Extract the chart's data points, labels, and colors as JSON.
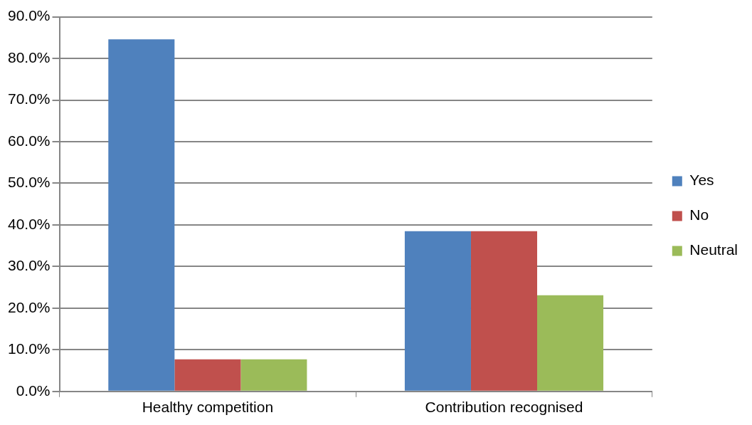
{
  "chart_data": {
    "type": "bar",
    "categories": [
      "Healthy competition",
      "Contribution recognised"
    ],
    "series": [
      {
        "name": "Yes",
        "color": "#4f81bd",
        "values": [
          84.6,
          38.5
        ]
      },
      {
        "name": "No",
        "color": "#c0504d",
        "values": [
          7.7,
          38.5
        ]
      },
      {
        "name": "Neutral",
        "color": "#9bbb59",
        "values": [
          7.7,
          23.1
        ]
      }
    ],
    "ylim": [
      0,
      90
    ],
    "yticks": [
      {
        "value": 0,
        "label": "0.0%"
      },
      {
        "value": 10,
        "label": "10.0%"
      },
      {
        "value": 20,
        "label": "20.0%"
      },
      {
        "value": 30,
        "label": "30.0%"
      },
      {
        "value": 40,
        "label": "40.0%"
      },
      {
        "value": 50,
        "label": "50.0%"
      },
      {
        "value": 60,
        "label": "60.0%"
      },
      {
        "value": 70,
        "label": "70.0%"
      },
      {
        "value": 80,
        "label": "80.0%"
      },
      {
        "value": 90,
        "label": "90.0%"
      }
    ],
    "grid": "y",
    "legend": "right"
  }
}
